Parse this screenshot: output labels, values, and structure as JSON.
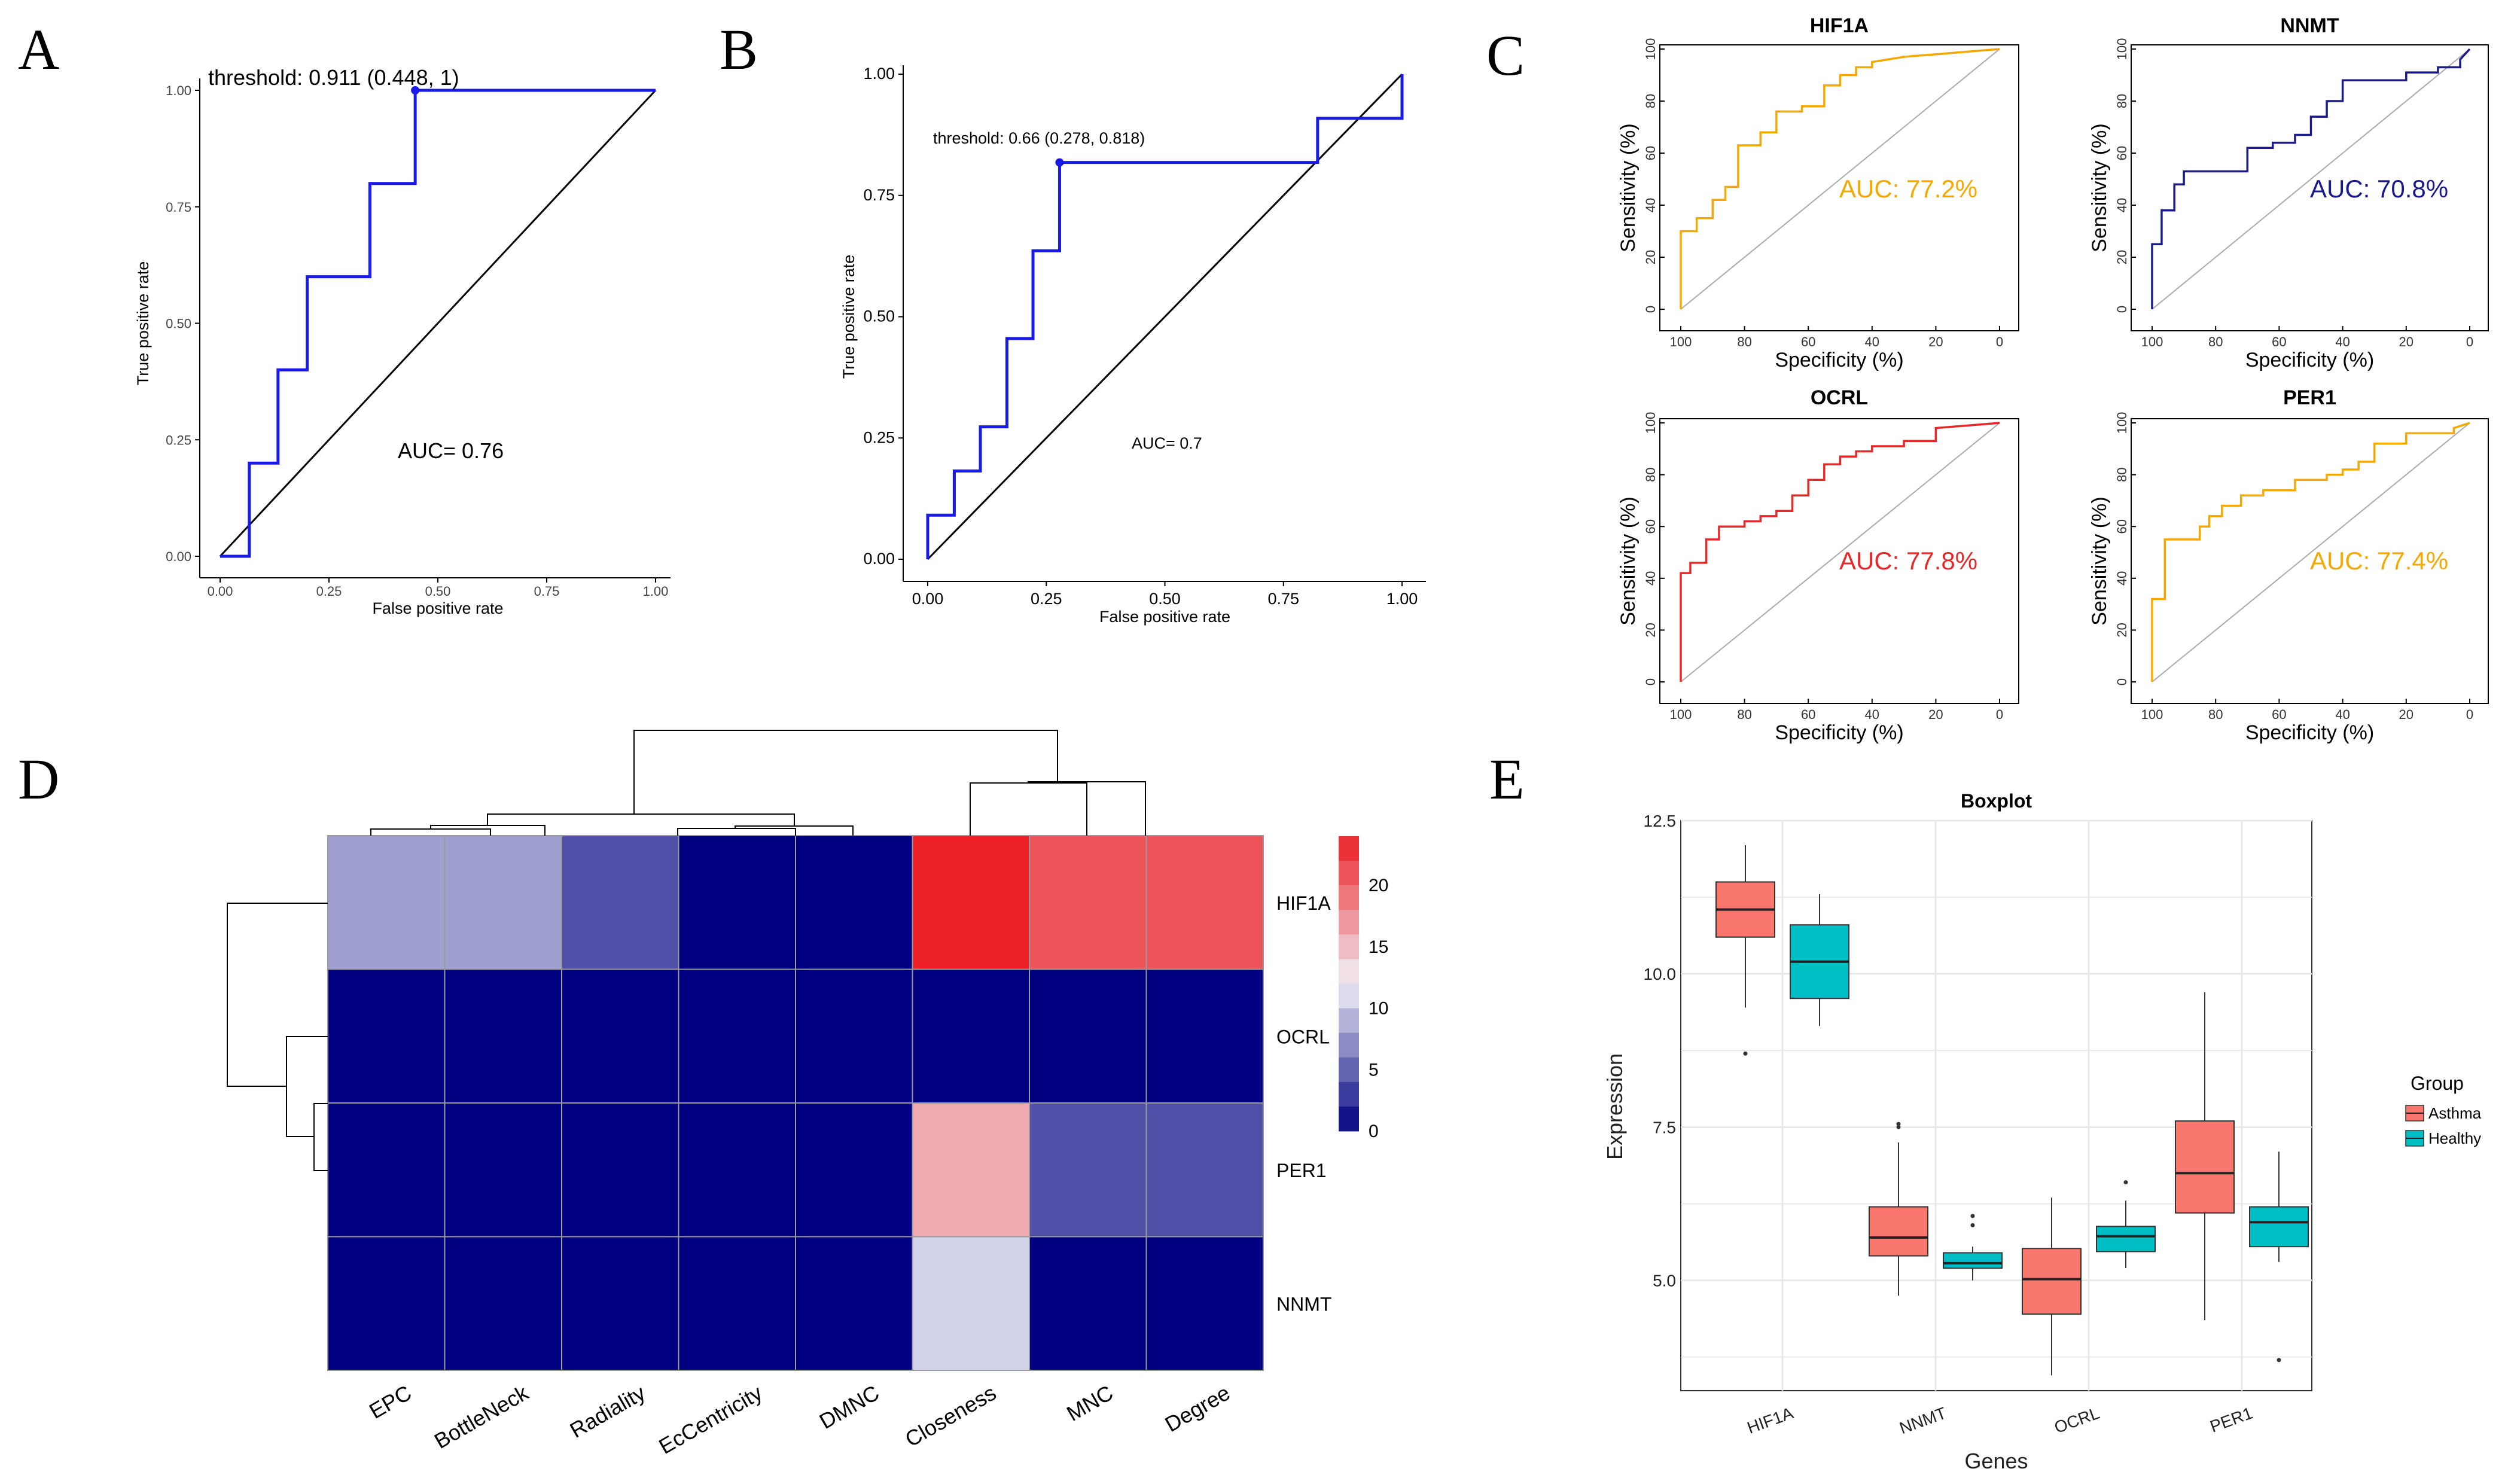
{
  "figure_labels": {
    "A": "A",
    "B": "B",
    "C": "C",
    "D": "D",
    "E": "E"
  },
  "colors": {
    "roc_line": "#1a1ae6",
    "diag": "#000000",
    "orange": "#f5a800",
    "navy": "#1a1a8c",
    "red": "#e82828",
    "asthma": "#f8766d",
    "healthy": "#00bfc4",
    "grid": "#e6e6e6"
  },
  "chart_data": [
    {
      "id": "A",
      "type": "line",
      "xlabel": "False positive rate",
      "ylabel": "True positive rate",
      "xlim": [
        0,
        1
      ],
      "ylim": [
        0,
        1
      ],
      "xticks": [
        "0.00",
        "0.25",
        "0.50",
        "0.75",
        "1.00"
      ],
      "yticks": [
        "0.00",
        "0.25",
        "0.50",
        "0.75",
        "1.00"
      ],
      "x": [
        0,
        0.067,
        0.067,
        0.133,
        0.133,
        0.2,
        0.2,
        0.344,
        0.344,
        0.448,
        0.448,
        1
      ],
      "y": [
        0,
        0,
        0.2,
        0.2,
        0.4,
        0.4,
        0.6,
        0.6,
        0.8,
        0.8,
        1,
        1
      ],
      "threshold_point": [
        0.448,
        1
      ],
      "threshold_label": "threshold: 0.911 (0.448, 1)",
      "auc_label": "AUC= 0.76"
    },
    {
      "id": "B",
      "type": "line",
      "xlabel": "False positive rate",
      "ylabel": "True positive rate",
      "xlim": [
        0,
        1
      ],
      "ylim": [
        0,
        1
      ],
      "xticks": [
        "0.00",
        "0.25",
        "0.50",
        "0.75",
        "1.00"
      ],
      "yticks": [
        "0.00",
        "0.25",
        "0.50",
        "0.75",
        "1.00"
      ],
      "x": [
        0,
        0,
        0.056,
        0.056,
        0.111,
        0.111,
        0.167,
        0.167,
        0.222,
        0.222,
        0.278,
        0.278,
        0.822,
        0.822,
        1,
        1
      ],
      "y": [
        0,
        0.091,
        0.091,
        0.182,
        0.182,
        0.273,
        0.273,
        0.455,
        0.455,
        0.636,
        0.636,
        0.818,
        0.818,
        0.909,
        0.909,
        1
      ],
      "threshold_point": [
        0.278,
        0.818
      ],
      "threshold_label": "threshold: 0.66 (0.278, 0.818)",
      "auc_label": "AUC= 0.7"
    },
    {
      "id": "C-HIF1A",
      "type": "line",
      "title": "HIF1A",
      "xlabel": "Specificity (%)",
      "ylabel": "Sensitivity (%)",
      "xlim": [
        100,
        0
      ],
      "ylim": [
        0,
        100
      ],
      "xticks": [
        "100",
        "80",
        "60",
        "40",
        "20",
        "0"
      ],
      "yticks": [
        "0",
        "20",
        "40",
        "60",
        "80",
        "100"
      ],
      "x": [
        100,
        100,
        95,
        95,
        90,
        90,
        86,
        86,
        82,
        82,
        75,
        75,
        70,
        70,
        62,
        62,
        55,
        55,
        50,
        50,
        45,
        45,
        40,
        40,
        30,
        20,
        10,
        0
      ],
      "y": [
        0,
        30,
        30,
        35,
        35,
        42,
        42,
        47,
        47,
        63,
        63,
        68,
        68,
        76,
        76,
        78,
        78,
        86,
        86,
        90,
        90,
        93,
        93,
        95,
        97,
        98,
        99,
        100
      ],
      "auc_label": "AUC: 77.2%",
      "color": "orange"
    },
    {
      "id": "C-NNMT",
      "type": "line",
      "title": "NNMT",
      "xlabel": "Specificity (%)",
      "ylabel": "Sensitivity (%)",
      "xlim": [
        100,
        0
      ],
      "ylim": [
        0,
        100
      ],
      "xticks": [
        "100",
        "80",
        "60",
        "40",
        "20",
        "0"
      ],
      "yticks": [
        "0",
        "20",
        "40",
        "60",
        "80",
        "100"
      ],
      "x": [
        100,
        100,
        97,
        97,
        93,
        93,
        90,
        90,
        70,
        70,
        62,
        62,
        55,
        55,
        50,
        50,
        45,
        45,
        40,
        40,
        20,
        20,
        10,
        10,
        3,
        3,
        0
      ],
      "y": [
        0,
        25,
        25,
        38,
        38,
        48,
        48,
        53,
        53,
        62,
        62,
        64,
        64,
        67,
        67,
        74,
        74,
        80,
        80,
        88,
        88,
        91,
        91,
        93,
        93,
        96,
        100
      ],
      "auc_label": "AUC: 70.8%",
      "color": "navy"
    },
    {
      "id": "C-OCRL",
      "type": "line",
      "title": "OCRL",
      "xlabel": "Specificity (%)",
      "ylabel": "Sensitivity (%)",
      "xlim": [
        100,
        0
      ],
      "ylim": [
        0,
        100
      ],
      "xticks": [
        "100",
        "80",
        "60",
        "40",
        "20",
        "0"
      ],
      "yticks": [
        "0",
        "20",
        "40",
        "60",
        "80",
        "100"
      ],
      "x": [
        100,
        100,
        97,
        97,
        92,
        92,
        88,
        88,
        80,
        80,
        75,
        75,
        70,
        70,
        65,
        65,
        60,
        60,
        55,
        55,
        50,
        50,
        45,
        45,
        40,
        40,
        30,
        30,
        20,
        20,
        10,
        0
      ],
      "y": [
        0,
        42,
        42,
        46,
        46,
        55,
        55,
        60,
        60,
        62,
        62,
        64,
        64,
        66,
        66,
        72,
        72,
        78,
        78,
        84,
        84,
        87,
        87,
        89,
        89,
        91,
        91,
        93,
        93,
        98,
        99,
        100
      ],
      "auc_label": "AUC: 77.8%",
      "color": "red"
    },
    {
      "id": "C-PER1",
      "type": "line",
      "title": "PER1",
      "xlabel": "Specificity (%)",
      "ylabel": "Sensitivity (%)",
      "xlim": [
        100,
        0
      ],
      "ylim": [
        0,
        100
      ],
      "xticks": [
        "100",
        "80",
        "60",
        "40",
        "20",
        "0"
      ],
      "yticks": [
        "0",
        "20",
        "40",
        "60",
        "80",
        "100"
      ],
      "x": [
        100,
        100,
        96,
        96,
        85,
        85,
        82,
        82,
        78,
        78,
        72,
        72,
        65,
        65,
        55,
        55,
        45,
        45,
        40,
        40,
        35,
        35,
        30,
        30,
        20,
        20,
        5,
        5,
        0
      ],
      "y": [
        0,
        32,
        32,
        55,
        55,
        60,
        60,
        64,
        64,
        68,
        68,
        72,
        72,
        74,
        74,
        78,
        78,
        80,
        80,
        82,
        82,
        85,
        85,
        92,
        92,
        96,
        96,
        98,
        100
      ],
      "auc_label": "AUC: 77.4%",
      "color": "orange"
    },
    {
      "id": "D",
      "type": "heatmap",
      "rows": [
        "HIF1A",
        "OCRL",
        "PER1",
        "NNMT"
      ],
      "columns": [
        "EPC",
        "BottleNeck",
        "Radiality",
        "EcCentricity",
        "DMNC",
        "Closeness",
        "MNC",
        "Degree"
      ],
      "values": [
        [
          8,
          8,
          4,
          0,
          0,
          24,
          21,
          21
        ],
        [
          0,
          0,
          0,
          0,
          0,
          0,
          0,
          0
        ],
        [
          0,
          0,
          0,
          0,
          0,
          16,
          4,
          4
        ],
        [
          0,
          0,
          0,
          0,
          0,
          10.5,
          0,
          0
        ]
      ],
      "color_range": [
        0,
        24
      ],
      "colorbar_ticks": [
        "0",
        "5",
        "10",
        "15",
        "20"
      ],
      "colorbar_tick_values": [
        0,
        5,
        10,
        15,
        20
      ]
    },
    {
      "id": "E",
      "type": "box",
      "title": "Boxplot",
      "xlabel": "Genes",
      "ylabel": "Expression",
      "categories": [
        "HIF1A",
        "NNMT",
        "OCRL",
        "PER1"
      ],
      "ylim": [
        3.2,
        12.5
      ],
      "yticks": [
        "5.0",
        "7.5",
        "10.0",
        "12.5"
      ],
      "legend_title": "Group",
      "series": [
        {
          "name": "Asthma",
          "color": "asthma",
          "boxes": [
            {
              "min": 9.45,
              "q1": 10.6,
              "median": 11.05,
              "q3": 11.5,
              "max": 12.1,
              "outliers": [
                8.7
              ]
            },
            {
              "min": 4.75,
              "q1": 5.4,
              "median": 5.7,
              "q3": 6.2,
              "max": 7.25,
              "outliers": [
                7.5,
                7.55
              ]
            },
            {
              "min": 3.45,
              "q1": 4.45,
              "median": 5.02,
              "q3": 5.52,
              "max": 6.35,
              "outliers": []
            },
            {
              "min": 4.35,
              "q1": 6.1,
              "median": 6.75,
              "q3": 7.6,
              "max": 9.7,
              "outliers": []
            }
          ]
        },
        {
          "name": "Healthy",
          "color": "healthy",
          "boxes": [
            {
              "min": 9.15,
              "q1": 9.6,
              "median": 10.2,
              "q3": 10.8,
              "max": 11.3,
              "outliers": []
            },
            {
              "min": 5.0,
              "q1": 5.2,
              "median": 5.28,
              "q3": 5.45,
              "max": 5.55,
              "outliers": [
                5.9,
                6.05
              ]
            },
            {
              "min": 5.2,
              "q1": 5.47,
              "median": 5.72,
              "q3": 5.88,
              "max": 6.3,
              "outliers": [
                6.6
              ]
            },
            {
              "min": 5.3,
              "q1": 5.55,
              "median": 5.95,
              "q3": 6.2,
              "max": 7.1,
              "outliers": [
                3.7
              ]
            }
          ]
        }
      ]
    }
  ]
}
